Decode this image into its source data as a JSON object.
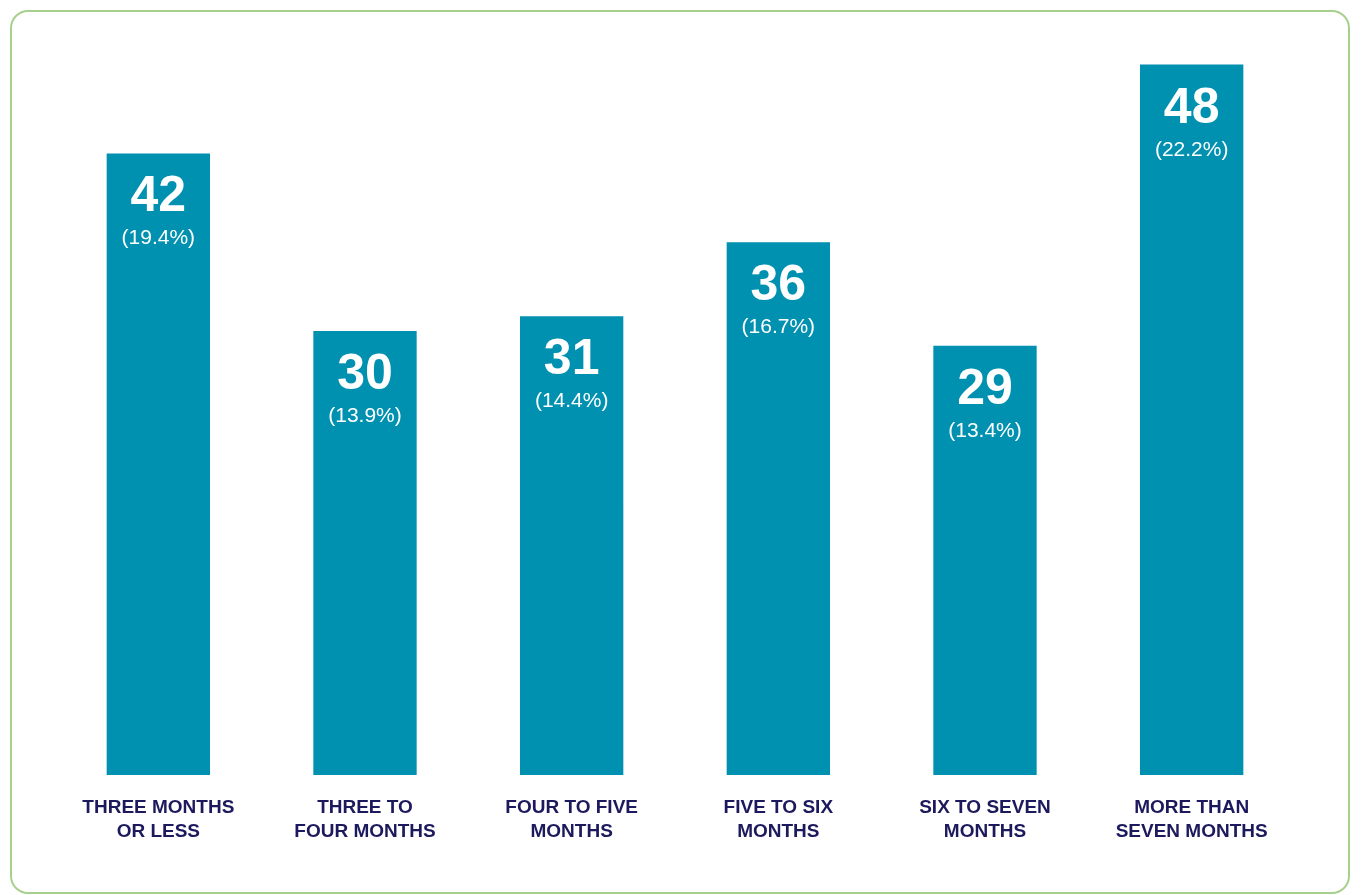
{
  "chart_data": {
    "type": "bar",
    "categories": [
      "THREE MONTHS\nOR LESS",
      "THREE TO\nFOUR MONTHS",
      "FOUR TO FIVE\nMONTHS",
      "FIVE TO SIX\nMONTHS",
      "SIX TO SEVEN\nMONTHS",
      "MORE THAN\nSEVEN MONTHS"
    ],
    "values": [
      42,
      30,
      31,
      36,
      29,
      48
    ],
    "color": "#0090b0",
    "data_labels": true,
    "annotations": [
      "(19.4%)",
      "(13.9%)",
      "(14.4%)",
      "(16.7%)",
      "(13.4%)",
      "(22.2%)"
    ]
  }
}
